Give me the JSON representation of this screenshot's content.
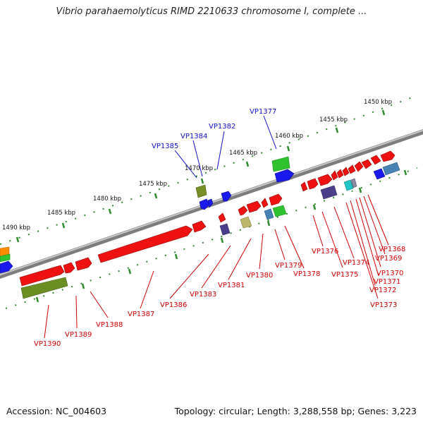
{
  "title": "Vibrio parahaemolyticus RIMD 2210633 chromosome I, complete ...",
  "accession": "Accession: NC_004603",
  "topology": "Topology: circular; Length: 3,288,558 bp; Genes: 3,223",
  "colors": {
    "backbone": "#8c8c8c",
    "tick": "#2e8b2e",
    "label_blue": "#1010c8",
    "label_red": "#d00000"
  },
  "kbp_labels": [
    "1450 kbp",
    "1455 kbp",
    "1460 kbp",
    "1465 kbp",
    "1470 kbp",
    "1475 kbp",
    "1480 kbp",
    "1485 kbp",
    "1490 kbp"
  ],
  "upper_gene_labels": [
    "VP1377",
    "VP1382",
    "VP1384",
    "VP1385"
  ],
  "lower_gene_labels": [
    "VP1368",
    "VP1369",
    "VP1370",
    "VP1371",
    "VP1372",
    "VP1373",
    "VP1374",
    "VP1375",
    "VP1376",
    "VP1378",
    "VP1379",
    "VP1380",
    "VP1381",
    "VP1383",
    "VP1386",
    "VP1387",
    "VP1388",
    "VP1389",
    "VP1390"
  ]
}
